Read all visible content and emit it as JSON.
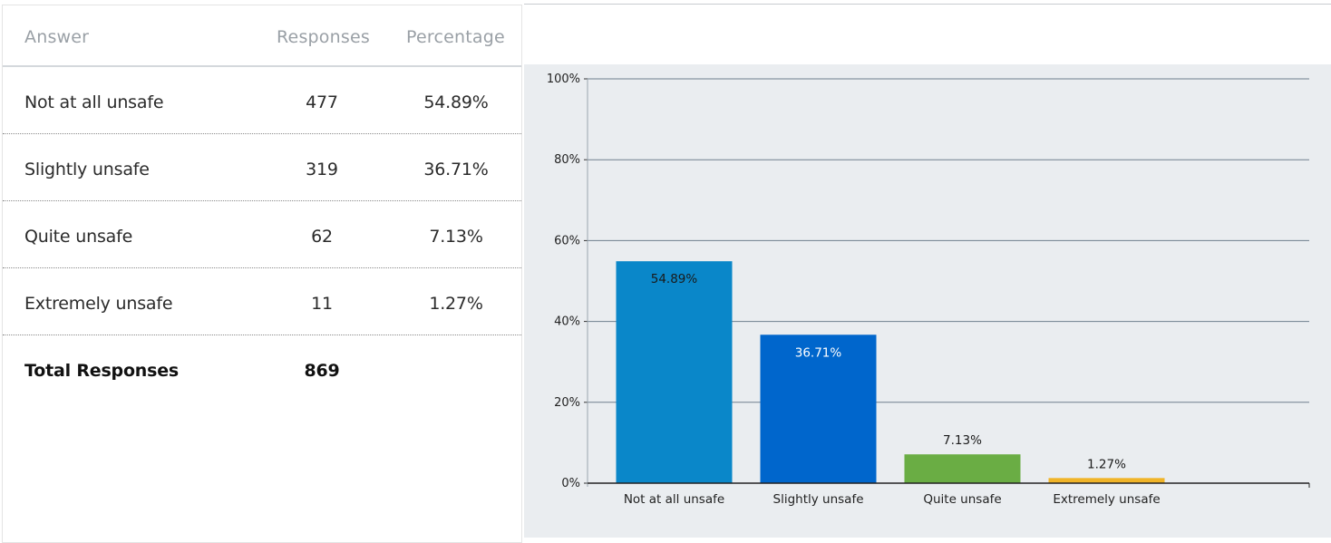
{
  "table": {
    "headers": {
      "answer": "Answer",
      "responses": "Responses",
      "percentage": "Percentage"
    },
    "rows": [
      {
        "answer": "Not at all unsafe",
        "responses": "477",
        "percentage": "54.89%"
      },
      {
        "answer": "Slightly unsafe",
        "responses": "319",
        "percentage": "36.71%"
      },
      {
        "answer": "Quite unsafe",
        "responses": "62",
        "percentage": "7.13%"
      },
      {
        "answer": "Extremely unsafe",
        "responses": "11",
        "percentage": "1.27%"
      }
    ],
    "total": {
      "label": "Total Responses",
      "value": "869"
    }
  },
  "chart_data": {
    "type": "bar",
    "categories": [
      "Not at all unsafe",
      "Slightly unsafe",
      "Quite unsafe",
      "Extremely unsafe"
    ],
    "values": [
      54.89,
      36.71,
      7.13,
      1.27
    ],
    "data_labels": [
      "54.89%",
      "36.71%",
      "7.13%",
      "1.27%"
    ],
    "colors": [
      "#0a87c9",
      "#0066cc",
      "#6aad44",
      "#f0b428"
    ],
    "label_colors": [
      "#1a1a1a",
      "#ffffff",
      "#1a1a1a",
      "#1a1a1a"
    ],
    "yticks": [
      "0%",
      "20%",
      "40%",
      "60%",
      "80%",
      "100%"
    ],
    "ytick_values": [
      0,
      20,
      40,
      60,
      80,
      100
    ],
    "ylim": [
      0,
      100
    ],
    "grid": true,
    "title": "",
    "xlabel": "",
    "ylabel": "",
    "background": "#eaedf0",
    "grid_color": "#6e7f8e"
  }
}
